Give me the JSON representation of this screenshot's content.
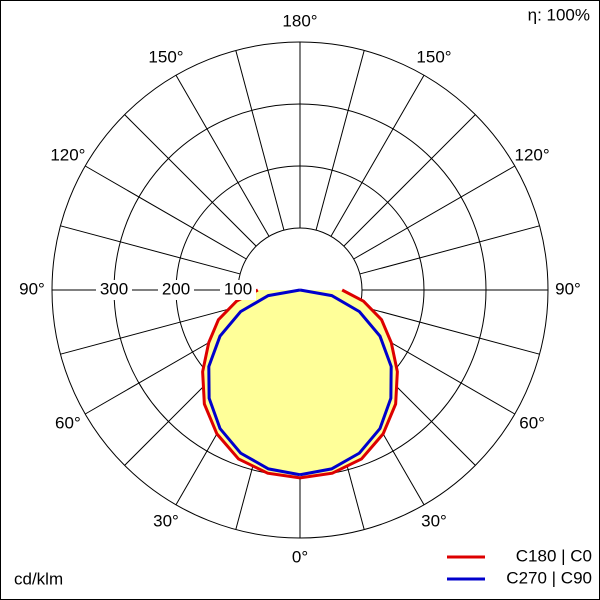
{
  "chart_data": {
    "type": "polar",
    "unit_label": "cd/klm",
    "efficiency_label": "η: 100%",
    "angles": [
      0,
      10,
      20,
      30,
      40,
      50,
      60,
      70,
      80,
      90
    ],
    "series": [
      {
        "name": "C180 | C0",
        "color": "#dd0000",
        "fill": "#ffff99",
        "values": [
          303,
          300,
          290,
          268,
          240,
          205,
          170,
          140,
          104,
          68
        ]
      },
      {
        "name": "C270 | C90",
        "color": "#0000cc",
        "values": [
          298,
          293,
          280,
          258,
          228,
          192,
          149,
          102,
          52,
          0
        ]
      }
    ],
    "rlim": [
      0,
      400
    ],
    "rticks": [
      100,
      200,
      300
    ],
    "angle_ticks": [
      {
        "value": 0,
        "label": "0°"
      },
      {
        "value": 30,
        "label": "30°"
      },
      {
        "value": 60,
        "label": "60°"
      },
      {
        "value": 90,
        "label": "90°"
      },
      {
        "value": 120,
        "label": "120°"
      },
      {
        "value": 150,
        "label": "150°"
      },
      {
        "value": 180,
        "label": "180°"
      }
    ],
    "grid": true,
    "legend": "bottom-right"
  }
}
